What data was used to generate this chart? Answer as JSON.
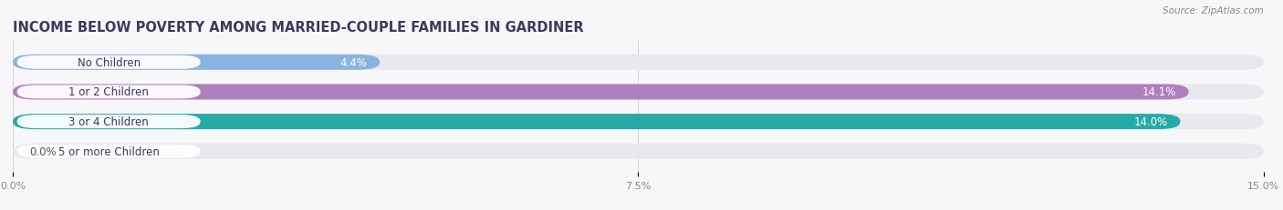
{
  "title": "INCOME BELOW POVERTY AMONG MARRIED-COUPLE FAMILIES IN GARDINER",
  "source": "Source: ZipAtlas.com",
  "categories": [
    "No Children",
    "1 or 2 Children",
    "3 or 4 Children",
    "5 or more Children"
  ],
  "values": [
    4.4,
    14.1,
    14.0,
    0.0
  ],
  "bar_colors": [
    "#8ab4e0",
    "#b07fc0",
    "#26aaa8",
    "#b0b0e0"
  ],
  "bar_bg_color": "#e8e8ee",
  "xlim": [
    0,
    15.0
  ],
  "xticks": [
    0.0,
    7.5,
    15.0
  ],
  "xtick_labels": [
    "0.0%",
    "7.5%",
    "15.0%"
  ],
  "title_fontsize": 10.5,
  "label_fontsize": 8.5,
  "value_fontsize": 8.5,
  "bar_height": 0.52,
  "fig_bg_color": "#f7f7f9",
  "label_pill_color": "#ffffff",
  "title_color": "#3a3a5c",
  "source_color": "#888888"
}
